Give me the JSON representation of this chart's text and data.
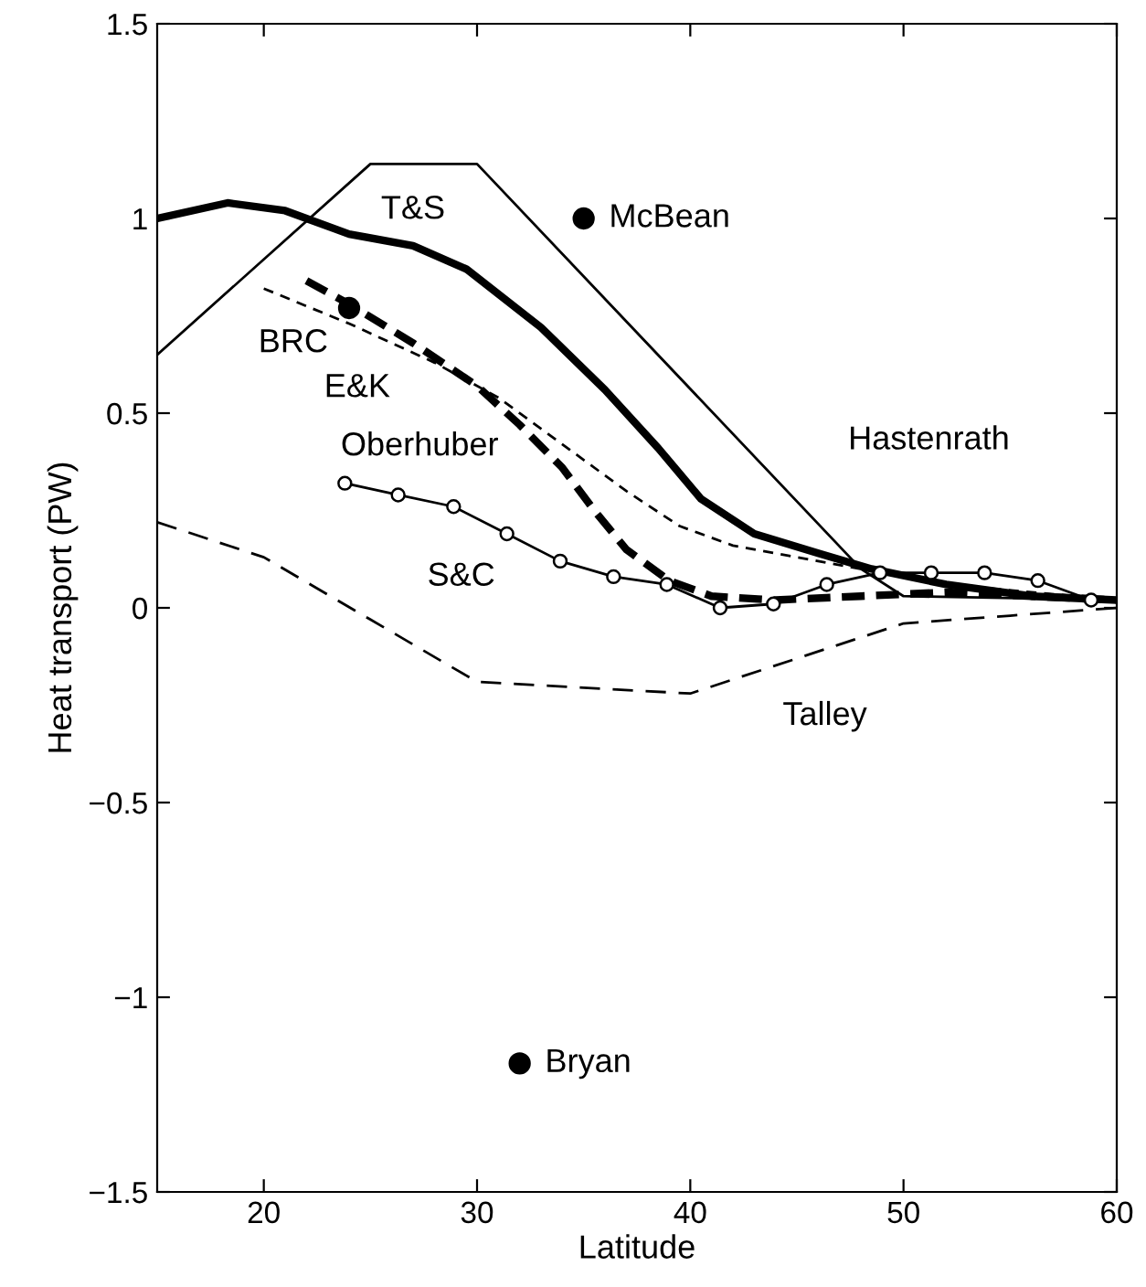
{
  "chart_data": {
    "type": "line",
    "xlabel": "Latitude",
    "ylabel": "Heat transport (PW)",
    "xlim": [
      15,
      60
    ],
    "ylim": [
      -1.5,
      1.5
    ],
    "xticks": [
      20,
      30,
      40,
      50,
      60
    ],
    "yticks": [
      -1.5,
      -1,
      -0.5,
      0,
      0.5,
      1,
      1.5
    ],
    "grid": false,
    "legend": false,
    "series": [
      {
        "name": "Hastenrath",
        "color": "#000000",
        "line_style": "solid",
        "x": [
          15,
          25,
          30,
          48,
          50,
          60
        ],
        "values": [
          0.65,
          1.14,
          1.14,
          0.1,
          0.03,
          0.02
        ]
      },
      {
        "name": "T&S",
        "color": "#000000",
        "line_style": "solid",
        "x": [
          15,
          18.3,
          21,
          24,
          27,
          29.5,
          33,
          36,
          38.5,
          40.5,
          43,
          46,
          48.5,
          52,
          56,
          60
        ],
        "values": [
          1.0,
          1.04,
          1.02,
          0.96,
          0.93,
          0.87,
          0.72,
          0.56,
          0.41,
          0.28,
          0.19,
          0.14,
          0.1,
          0.06,
          0.03,
          0.02
        ]
      },
      {
        "name": "E&K",
        "color": "#000000",
        "line_style": "dashed",
        "x": [
          20,
          24,
          28,
          31,
          34,
          37,
          39.5,
          42,
          45,
          48,
          52,
          56,
          60
        ],
        "values": [
          0.82,
          0.73,
          0.63,
          0.54,
          0.42,
          0.3,
          0.21,
          0.16,
          0.13,
          0.1,
          0.06,
          0.04,
          0.02
        ]
      },
      {
        "name": "Oberhuber",
        "color": "#000000",
        "line_style": "dashed",
        "x": [
          22,
          24,
          27,
          30,
          32,
          34,
          35.5,
          37,
          39,
          41,
          44,
          48,
          52,
          56,
          60
        ],
        "values": [
          0.84,
          0.78,
          0.68,
          0.57,
          0.47,
          0.36,
          0.25,
          0.15,
          0.07,
          0.03,
          0.02,
          0.03,
          0.04,
          0.03,
          0.02
        ]
      },
      {
        "name": "S&C",
        "color": "#000000",
        "line_style": "solid",
        "marker": "circle",
        "x": [
          23.8,
          26.3,
          28.9,
          31.4,
          33.9,
          36.4,
          38.9,
          41.4,
          43.9,
          46.4,
          48.9,
          51.3,
          53.8,
          56.3,
          58.8
        ],
        "values": [
          0.32,
          0.29,
          0.26,
          0.19,
          0.12,
          0.08,
          0.06,
          0.0,
          0.01,
          0.06,
          0.09,
          0.09,
          0.09,
          0.07,
          0.02
        ]
      },
      {
        "name": "Talley",
        "color": "#000000",
        "line_style": "dashed",
        "x": [
          15,
          20,
          25,
          30,
          40,
          50,
          55,
          60
        ],
        "values": [
          0.22,
          0.13,
          -0.03,
          -0.19,
          -0.22,
          -0.04,
          -0.02,
          0.0
        ]
      },
      {
        "name": "McBean",
        "type": "scatter",
        "color": "#000000",
        "marker": "circle",
        "x": [
          35
        ],
        "values": [
          1.0
        ]
      },
      {
        "name": "BRC",
        "type": "scatter",
        "color": "#000000",
        "marker": "circle",
        "x": [
          24
        ],
        "values": [
          0.77
        ]
      },
      {
        "name": "Bryan",
        "type": "scatter",
        "color": "#000000",
        "marker": "circle",
        "x": [
          32
        ],
        "values": [
          -1.17
        ]
      }
    ]
  }
}
